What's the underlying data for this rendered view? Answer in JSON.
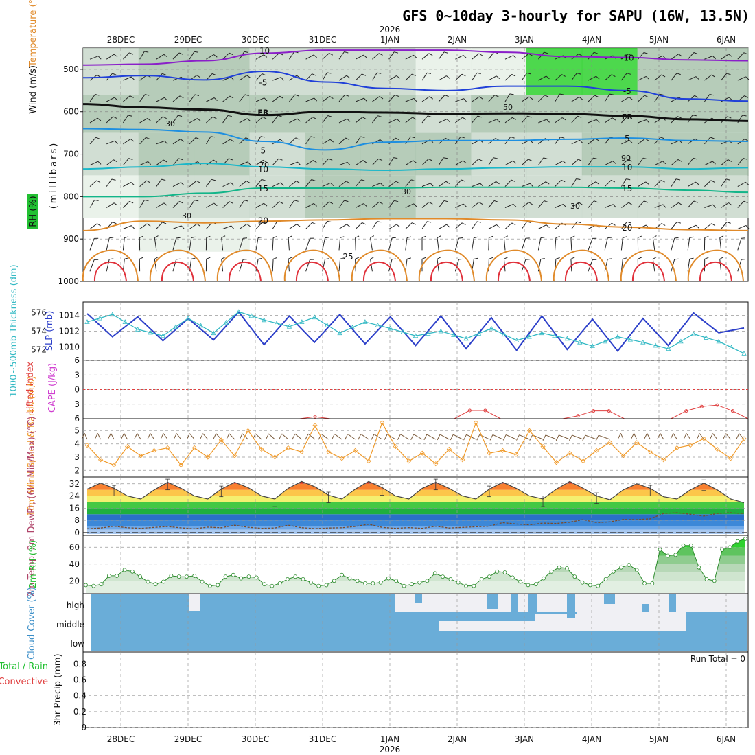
{
  "title": "GFS 0~10day 3-hourly for SAPU (16W, 13.5N)",
  "x_axis": {
    "dates": [
      "28DEC",
      "29DEC",
      "30DEC",
      "31DEC",
      "1JAN",
      "2JAN",
      "3JAN",
      "4JAN",
      "5JAN",
      "6JAN"
    ],
    "year": "2026"
  },
  "colors": {
    "purple": "#8a1fc9",
    "blue": "#2040d8",
    "skyblue": "#1e8fe0",
    "cyan": "#1ab7c9",
    "green": "#12b589",
    "orange": "#e08a2a",
    "red": "#e0303a",
    "thick": "#2c3fc9",
    "thick_cyan": "#32b9c4",
    "wind_orange": "#f09a2a",
    "rh_green": "#22c032",
    "cloud": "#6aadd8",
    "cape": "#d040d0",
    "li": "#e04040"
  },
  "chart_data": [
    {
      "type": "heatmap",
      "panel": "Upper-air time-height section",
      "ylabel": "(millibars)",
      "ytick_labels": [
        "500",
        "600",
        "700",
        "800",
        "900",
        "1000"
      ],
      "series_labels": [
        "Wind (m/s)",
        "Temperature (°C)",
        "RH (%)"
      ],
      "isotherms": [
        {
          "label": "-10",
          "level_mb": [
            490,
            488,
            480,
            462,
            455,
            455,
            455,
            460,
            470,
            472,
            478,
            480
          ]
        },
        {
          "label": "-5",
          "level_mb": [
            520,
            515,
            525,
            505,
            530,
            545,
            550,
            540,
            540,
            550,
            570,
            575
          ]
        },
        {
          "label": "FR",
          "level_mb": [
            582,
            590,
            595,
            608,
            600,
            602,
            605,
            604,
            605,
            610,
            618,
            622
          ]
        },
        {
          "label": "5",
          "level_mb": [
            640,
            642,
            648,
            670,
            690,
            672,
            668,
            668,
            665,
            662,
            668,
            670
          ]
        },
        {
          "label": "10",
          "level_mb": [
            735,
            730,
            722,
            730,
            735,
            738,
            735,
            732,
            730,
            730,
            735,
            732
          ]
        },
        {
          "label": "15",
          "level_mb": [
            800,
            800,
            792,
            780,
            780,
            780,
            778,
            778,
            778,
            780,
            785,
            790
          ]
        },
        {
          "label": "20",
          "level_mb": [
            880,
            858,
            862,
            858,
            855,
            852,
            852,
            855,
            865,
            872,
            878,
            880
          ]
        },
        {
          "label": "25",
          "level_mb": [
            920,
            915,
            918,
            918,
            918,
            918,
            918,
            918,
            920,
            920,
            925,
            930
          ]
        }
      ],
      "rh_labels": [
        "30",
        "50",
        "70",
        "90"
      ],
      "rh_percent": [
        [
          60,
          70,
          85,
          60,
          50,
          55,
          45,
          45,
          92,
          95,
          88,
          80
        ],
        [
          72,
          80,
          88,
          82,
          75,
          70,
          68,
          70,
          80,
          85,
          80,
          78
        ],
        [
          60,
          75,
          70,
          68,
          72,
          78,
          70,
          68,
          66,
          70,
          72,
          70
        ],
        [
          40,
          55,
          62,
          66,
          72,
          70,
          68,
          62,
          60,
          58,
          55,
          50
        ],
        [
          20,
          30,
          30,
          28,
          22,
          18,
          18,
          15,
          15,
          12,
          12,
          10
        ]
      ]
    },
    {
      "type": "line",
      "panel": "1000-500mb Thickness / SLP",
      "ylabel_left": "1000~500mb Thickness (dm)",
      "ylabel_right": "SLP (mb)",
      "yticks_left": [
        572,
        574,
        576
      ],
      "yticks_right": [
        1010,
        1012,
        1014
      ],
      "series": [
        {
          "name": "SLP",
          "values": [
            1014.2,
            1011.3,
            1013.8,
            1010.8,
            1013.6,
            1010.9,
            1014.4,
            1010.3,
            1013.9,
            1010.6,
            1014.1,
            1010.4,
            1013.8,
            1010.2,
            1013.9,
            1009.8,
            1013.7,
            1009.6,
            1013.9,
            1009.7,
            1013.5,
            1009.5,
            1013.6,
            1010.2,
            1014.3,
            1011.8,
            1012.4
          ]
        },
        {
          "name": "Thickness",
          "values": [
            575.0,
            575.8,
            574.2,
            573.5,
            575.4,
            573.8,
            576.1,
            575.2,
            574.5,
            575.5,
            573.8,
            575.0,
            574.3,
            573.5,
            574.0,
            573.2,
            574.3,
            573.0,
            573.8,
            573.2,
            572.4,
            573.4,
            572.8,
            572.1,
            573.7,
            572.9,
            571.6
          ]
        }
      ]
    },
    {
      "type": "line",
      "panel": "Lifted Index / CAPE",
      "ylabel_left": "Lifted Index",
      "ylabel_right": "CAPE (J/kg)",
      "yticks": [
        "-6",
        "-3",
        "0",
        "3",
        "6"
      ],
      "series": [
        {
          "name": "Lifted Index",
          "values": [
            6,
            6,
            6,
            6,
            6,
            6,
            6,
            6,
            6,
            6,
            6,
            6,
            6,
            6,
            6,
            5.6,
            6,
            6,
            6,
            6,
            6,
            6,
            6,
            6,
            6,
            4.3,
            4.3,
            6,
            6,
            6,
            6,
            6,
            5.4,
            4.4,
            4.4,
            6,
            6,
            6,
            6,
            4.4,
            3.5,
            3.2,
            4.4,
            6
          ]
        }
      ]
    },
    {
      "type": "line",
      "panel": "10m Wind Speed & Barbs",
      "ylabel": "10m Wind Speed & Barbs (m/s)",
      "yticks": [
        2,
        3,
        4,
        5
      ],
      "series": [
        {
          "name": "10m Wind Speed",
          "values": [
            3.9,
            2.8,
            2.4,
            3.8,
            3.1,
            3.5,
            3.7,
            2.4,
            3.7,
            3.0,
            4.3,
            3.1,
            5.0,
            3.6,
            3.0,
            3.7,
            3.4,
            5.4,
            3.4,
            2.9,
            3.5,
            2.7,
            5.6,
            3.8,
            2.7,
            3.3,
            2.5,
            3.6,
            2.8,
            5.6,
            3.3,
            3.5,
            3.2,
            5.0,
            3.8,
            2.6,
            3.3,
            2.7,
            3.5,
            4.1,
            3.1,
            4.1,
            3.4,
            2.8,
            3.7,
            3.9,
            4.4,
            3.6,
            2.9,
            4.4
          ]
        }
      ]
    },
    {
      "type": "area",
      "panel": "2m Temp / 2m DewPt",
      "ylabel": "2m Temp, 2m DewPt, (6hr Min/Max) (°C)",
      "yticks": [
        0,
        8,
        16,
        24,
        32
      ],
      "series": [
        {
          "name": "2m Temp",
          "values": [
            28.5,
            32.5,
            29.0,
            24.0,
            22.0,
            28.0,
            33.0,
            29.0,
            24.0,
            22.0,
            28.5,
            33.0,
            29.5,
            24.0,
            22.0,
            29.0,
            33.5,
            30.0,
            24.5,
            22.0,
            28.5,
            33.5,
            29.5,
            24.0,
            22.0,
            29.0,
            33.0,
            29.0,
            24.0,
            22.0,
            28.5,
            33.0,
            29.0,
            24.0,
            22.0,
            28.5,
            33.5,
            29.0,
            24.0,
            21.5,
            28.0,
            32.0,
            29.0,
            23.5,
            22.0,
            28.0,
            32.5,
            28.0,
            22.0,
            19.5
          ]
        },
        {
          "name": "2m DewPt",
          "values": [
            2.5,
            3.0,
            4.2,
            3.2,
            2.8,
            3.4,
            4.0,
            3.1,
            2.5,
            3.6,
            3.2,
            4.8,
            3.5,
            2.8,
            3.0,
            4.8,
            3.2,
            2.6,
            3.0,
            3.2,
            4.0,
            5.5,
            3.4,
            2.8,
            3.3,
            2.8,
            4.2,
            3.0,
            3.4,
            3.8,
            4.2,
            6.5,
            5.6,
            5.1,
            6.2,
            6.0,
            6.8,
            8.5,
            6.5,
            7.0,
            8.6,
            8.5,
            9.0,
            12.5,
            13.0,
            12.0,
            10.8,
            12.5,
            13.0,
            12.4
          ]
        }
      ]
    },
    {
      "type": "area",
      "panel": "2m RH",
      "ylabel": "2m RH (%)",
      "yticks": [
        20,
        40,
        60
      ],
      "series": [
        {
          "name": "2m RH",
          "values": [
            15,
            14,
            16,
            26,
            26,
            33,
            31,
            25,
            19,
            16,
            19,
            26,
            25,
            25,
            26,
            19,
            14,
            15,
            25,
            27,
            23,
            25,
            24,
            16,
            14,
            17,
            22,
            25,
            22,
            18,
            14,
            15,
            20,
            27,
            23,
            20,
            17,
            17,
            18,
            23,
            20,
            14,
            16,
            18,
            20,
            29,
            25,
            22,
            18,
            14,
            14,
            22,
            25,
            31,
            30,
            24,
            19,
            15,
            16,
            23,
            31,
            36,
            35,
            25,
            18,
            15,
            14,
            22,
            31,
            36,
            39,
            33,
            17,
            17,
            57,
            50,
            51,
            62,
            62,
            36,
            22,
            20,
            57,
            60,
            67,
            70
          ]
        }
      ]
    },
    {
      "type": "heatmap",
      "panel": "Cloud Cover",
      "ylabel": "Cloud Cover (%)",
      "row_labels": [
        "high",
        "middle",
        "low"
      ]
    },
    {
      "type": "bar",
      "panel": "3hr Precip",
      "ylabel_left": "Total / Rain",
      "ylabel_left2": "Convective",
      "ylabel": "3hr Precip (mm)",
      "yticks": [
        "0",
        "0.2",
        "0.4",
        "0.6",
        "0.8"
      ],
      "annotation": "Run Total = 0",
      "values": []
    }
  ]
}
